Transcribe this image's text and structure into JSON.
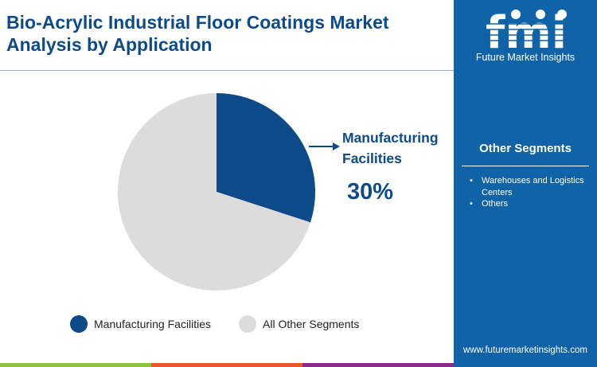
{
  "title": "Bio-Acrylic Industrial Floor Coatings Market Analysis by Application",
  "brand": {
    "logo_text": "fmi",
    "name": "Future Market Insights",
    "url": "www.futuremarketinsights.com"
  },
  "other_segments": {
    "heading": "Other Segments",
    "items": [
      "Warehouses and Logistics Centers",
      "Others"
    ]
  },
  "colors": {
    "primary": "#0d4a8a",
    "other": "#dcdcdc",
    "panel": "#0f63a6",
    "bars": [
      "#8dc43f",
      "#e8582a",
      "#8a2b8c"
    ]
  },
  "chart_data": {
    "type": "pie",
    "title": "Bio-Acrylic Industrial Floor Coatings Market Analysis by Application",
    "slices": [
      {
        "label": "Manufacturing Facilities",
        "value": 30,
        "color": "#0d4a8a"
      },
      {
        "label": "All Other Segments",
        "value": 70,
        "color": "#dcdcdc"
      }
    ],
    "annotation": {
      "label": "Manufacturing Facilities",
      "value": "30%"
    },
    "legend": "bottom"
  }
}
